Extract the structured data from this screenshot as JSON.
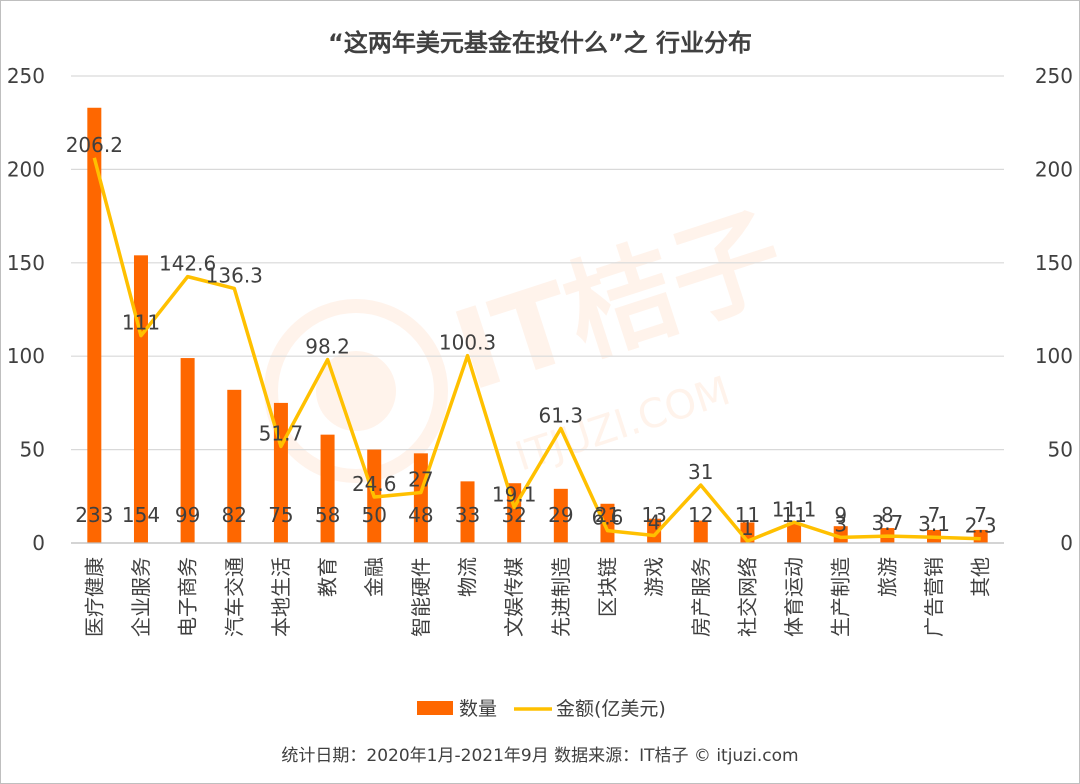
{
  "footer": "统计日期：2020年1月-2021年9月    数据来源：IT桔子 © itjuzi.com",
  "watermark": {
    "brand": "IT桔子",
    "url": "ITJUZI.COM"
  },
  "colors": {
    "bar": "#fe6700",
    "line": "#ffc000",
    "grid": "#d9d9d9",
    "text": "#404040"
  },
  "chart_data": {
    "type": "bar",
    "title": "“这两年美元基金在投什么”之 行业分布",
    "categories": [
      "医疗健康",
      "企业服务",
      "电子商务",
      "汽车交通",
      "本地生活",
      "教育",
      "金融",
      "智能硬件",
      "物流",
      "文娱传媒",
      "先进制造",
      "区块链",
      "游戏",
      "房产服务",
      "社交网络",
      "体育运动",
      "生产制造",
      "旅游",
      "广告营销",
      "其他"
    ],
    "ylim": [
      0,
      250
    ],
    "yticks": [
      "0",
      "50",
      "100",
      "150",
      "200",
      "250"
    ],
    "y2lim": [
      0,
      250
    ],
    "y2ticks": [
      "0",
      "50",
      "100",
      "150",
      "200",
      "250"
    ],
    "grid": true,
    "legend_position": "bottom",
    "series": [
      {
        "name": "数量",
        "type": "bar",
        "values": [
          233,
          154,
          99,
          82,
          75,
          58,
          50,
          48,
          33,
          32,
          29,
          21,
          13,
          12,
          11,
          11,
          9,
          8,
          7,
          7
        ],
        "labels": [
          "233",
          "154",
          "99",
          "82",
          "75",
          "58",
          "50",
          "48",
          "33",
          "32",
          "29",
          "21",
          "13",
          "12",
          "11",
          "11",
          "9",
          "8",
          "7",
          "7"
        ]
      },
      {
        "name": "金额(亿美元)",
        "type": "line",
        "values": [
          206.2,
          111,
          142.6,
          136.3,
          51.7,
          98.2,
          24.6,
          27,
          100.3,
          19.1,
          61.3,
          6.6,
          4,
          31,
          1,
          11.1,
          3,
          3.7,
          3.1,
          2.3
        ],
        "labels": [
          "206.2",
          "111",
          "142.6",
          "136.3",
          "51.7",
          "98.2",
          "24.6",
          "27",
          "100.3",
          "19.1",
          "61.3",
          "6.6",
          "4",
          "31",
          "1",
          "11.1",
          "3",
          "3.7",
          "3.1",
          "2.3"
        ]
      }
    ]
  }
}
